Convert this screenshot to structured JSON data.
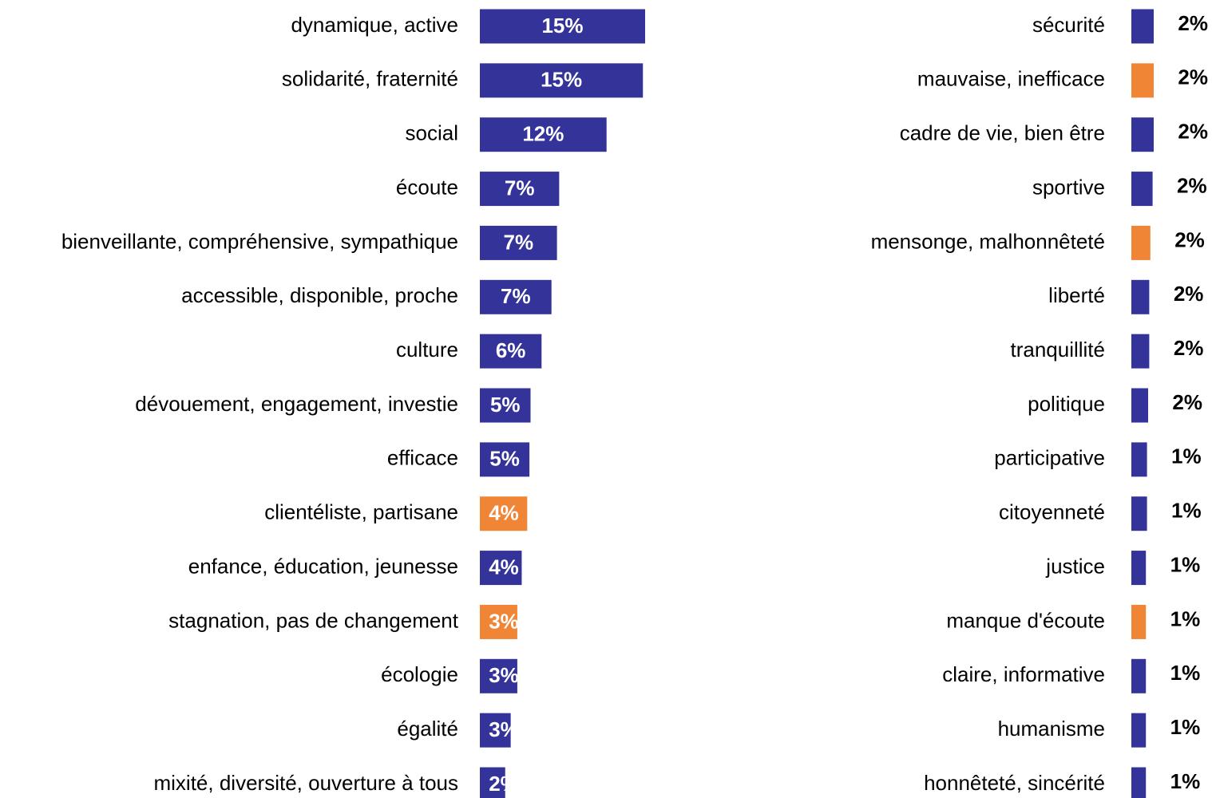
{
  "chart_data": [
    {
      "type": "bar",
      "orientation": "horizontal",
      "categories": [
        "dynamique, active",
        "solidarité, fraternité",
        "social",
        "écoute",
        "bienveillante, compréhensive, sympathique",
        "accessible, disponible, proche",
        "culture",
        "dévouement, engagement, investie",
        "efficace",
        "clientéliste, partisane",
        "enfance, éducation, jeunesse",
        "stagnation, pas de changement",
        "écologie",
        "égalité",
        "mixité, diversité, ouverture à tous"
      ],
      "values": [
        15.0,
        14.8,
        11.5,
        7.2,
        7.0,
        6.5,
        5.6,
        4.6,
        4.5,
        4.3,
        3.8,
        3.4,
        3.4,
        2.8,
        2.3
      ],
      "value_labels": [
        "15%",
        "15%",
        "12%",
        "7%",
        "7%",
        "7%",
        "6%",
        "5%",
        "5%",
        "4%",
        "4%",
        "3%",
        "3%",
        "3%",
        "2%"
      ],
      "colors": [
        "#333399",
        "#333399",
        "#333399",
        "#333399",
        "#333399",
        "#333399",
        "#333399",
        "#333399",
        "#333399",
        "#f08536",
        "#333399",
        "#f08536",
        "#333399",
        "#333399",
        "#333399"
      ],
      "label_position": "inside"
    },
    {
      "type": "bar",
      "orientation": "horizontal",
      "categories": [
        "sécurité",
        "mauvaise, inefficace",
        "cadre de vie, bien être",
        "sportive",
        "mensonge, malhonnêteté",
        "liberté",
        "tranquillité",
        "politique",
        "participative",
        "citoyenneté",
        "justice",
        "manque d'écoute",
        "claire, informative",
        "humanisme",
        "honnêteté, sincérité"
      ],
      "values": [
        2.0,
        2.0,
        2.0,
        1.9,
        1.7,
        1.6,
        1.6,
        1.5,
        1.4,
        1.4,
        1.3,
        1.3,
        1.3,
        1.3,
        1.3
      ],
      "value_labels": [
        "2%",
        "2%",
        "2%",
        "2%",
        "2%",
        "2%",
        "2%",
        "2%",
        "1%",
        "1%",
        "1%",
        "1%",
        "1%",
        "1%",
        "1%"
      ],
      "colors": [
        "#333399",
        "#f08536",
        "#333399",
        "#333399",
        "#f08536",
        "#333399",
        "#333399",
        "#333399",
        "#333399",
        "#333399",
        "#333399",
        "#f08536",
        "#333399",
        "#333399",
        "#333399"
      ],
      "label_position": "outside"
    }
  ]
}
